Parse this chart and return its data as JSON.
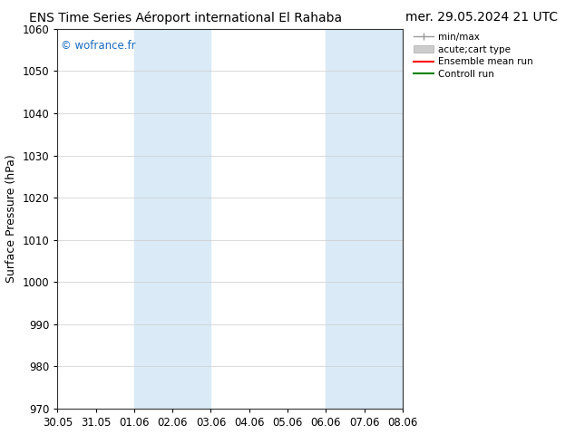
{
  "title_left": "ENS Time Series Aéroport international El Rahaba",
  "title_right": "mer. 29.05.2024 21 UTC",
  "ylabel": "Surface Pressure (hPa)",
  "ylim": [
    970,
    1060
  ],
  "yticks": [
    970,
    980,
    990,
    1000,
    1010,
    1020,
    1030,
    1040,
    1050,
    1060
  ],
  "xtick_labels": [
    "30.05",
    "31.05",
    "01.06",
    "02.06",
    "03.06",
    "04.06",
    "05.06",
    "06.06",
    "07.06",
    "08.06"
  ],
  "xtick_positions": [
    0,
    1,
    2,
    3,
    4,
    5,
    6,
    7,
    8,
    9
  ],
  "shaded_regions": [
    {
      "xstart": 2,
      "xend": 4
    },
    {
      "xstart": 7,
      "xend": 8
    },
    {
      "xstart": 8,
      "xend": 9
    }
  ],
  "shaded_color": "#daeaf7",
  "background_color": "#ffffff",
  "plot_bg_color": "#ffffff",
  "copyright_text": "© wofrance.fr",
  "copyright_color": "#1a6bc0",
  "legend_entries": [
    {
      "label": "min/max",
      "color": "#aaaaaa",
      "lw": 1
    },
    {
      "label": "acute;cart type",
      "color": "#cccccc",
      "lw": 6
    },
    {
      "label": "Ensemble mean run",
      "color": "#ff0000",
      "lw": 1.5
    },
    {
      "label": "Controll run",
      "color": "#008000",
      "lw": 1.5
    }
  ],
  "title_fontsize": 10,
  "tick_fontsize": 8.5,
  "ylabel_fontsize": 9
}
